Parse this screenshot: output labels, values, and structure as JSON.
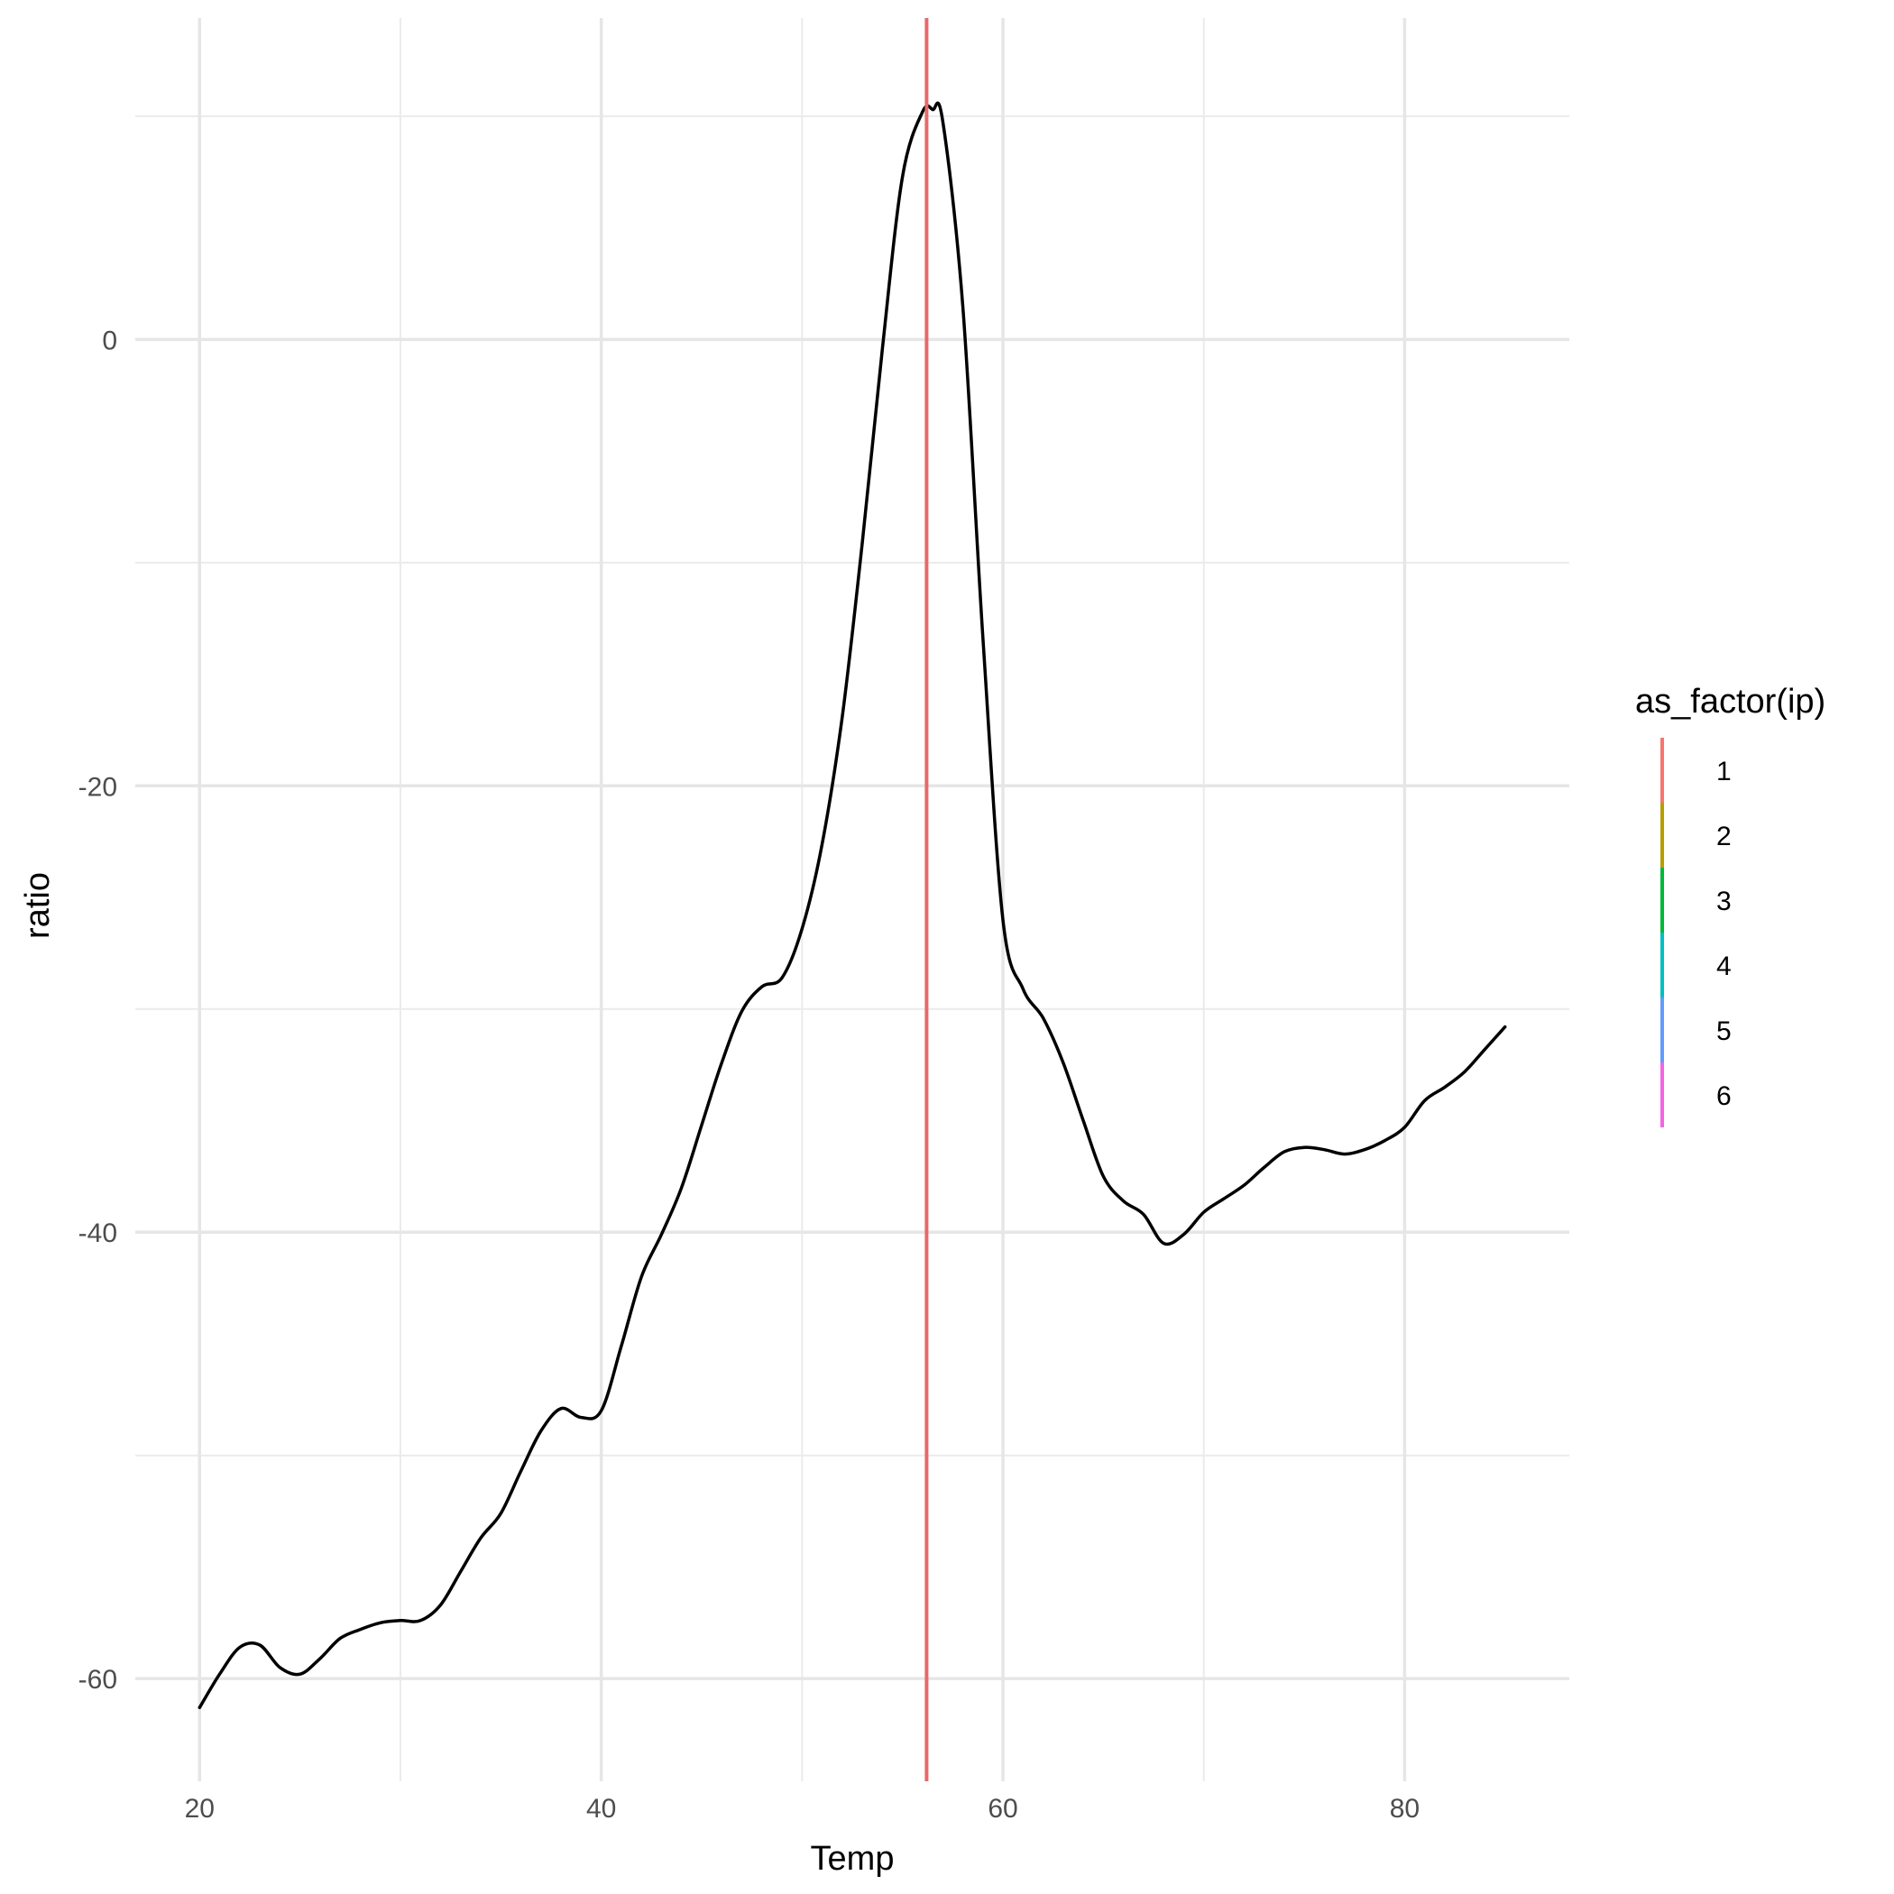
{
  "chart_data": {
    "type": "line",
    "xlabel": "Temp",
    "ylabel": "ratio",
    "xlim": [
      16.8,
      88.2
    ],
    "ylim": [
      -64.6,
      14.4
    ],
    "x_ticks": [
      20,
      40,
      60,
      80
    ],
    "x_minor_ticks": [
      30,
      50,
      70
    ],
    "y_ticks": [
      -60,
      -40,
      -20,
      0
    ],
    "y_minor_ticks": [
      -50,
      -30,
      -10,
      10
    ],
    "grid": true,
    "series": [
      {
        "color": "#000000",
        "x": [
          20,
          21,
          22,
          23,
          24,
          25,
          26,
          27,
          28,
          29,
          30,
          31,
          32,
          33,
          34,
          35,
          36,
          37,
          38,
          39,
          40,
          41,
          42,
          43,
          44,
          45,
          46,
          47,
          48,
          49,
          50,
          51,
          52,
          53,
          54,
          55,
          56,
          56.5,
          57,
          58,
          59,
          60,
          61,
          62,
          63,
          64,
          65,
          66,
          67,
          68,
          69,
          70,
          71,
          72,
          73,
          74,
          75,
          76,
          77,
          78,
          79,
          80,
          81,
          82,
          83,
          84,
          85
        ],
        "y": [
          -61.3,
          -59.8,
          -58.6,
          -58.5,
          -59.5,
          -59.8,
          -59.1,
          -58.2,
          -57.8,
          -57.5,
          -57.4,
          -57.4,
          -56.7,
          -55.2,
          -53.7,
          -52.6,
          -50.7,
          -48.9,
          -47.9,
          -48.3,
          -48.0,
          -45.1,
          -42.0,
          -40.1,
          -38.0,
          -35.2,
          -32.4,
          -30.1,
          -29.0,
          -28.6,
          -26.4,
          -22.6,
          -16.9,
          -9.1,
          -0.4,
          7.3,
          10.2,
          10.3,
          9.8,
          1.5,
          -13.3,
          -26.0,
          -29.1,
          -30.4,
          -32.4,
          -35.0,
          -37.5,
          -38.6,
          -39.2,
          -40.5,
          -40.1,
          -39.1,
          -38.5,
          -37.9,
          -37.1,
          -36.4,
          -36.2,
          -36.3,
          -36.5,
          -36.3,
          -35.9,
          -35.3,
          -34.1,
          -33.5,
          -32.8,
          -31.8,
          -30.8
        ]
      }
    ],
    "vlines": [
      {
        "x": 56.2,
        "color": "#E8686A"
      }
    ],
    "legend": {
      "title": "as_factor(ip)",
      "placement": "right",
      "items": [
        {
          "label": "1",
          "color": "#F8766D"
        },
        {
          "label": "2",
          "color": "#B79F00"
        },
        {
          "label": "3",
          "color": "#00BA38"
        },
        {
          "label": "4",
          "color": "#00BFC4"
        },
        {
          "label": "5",
          "color": "#619CFF"
        },
        {
          "label": "6",
          "color": "#F564E3"
        }
      ]
    }
  }
}
